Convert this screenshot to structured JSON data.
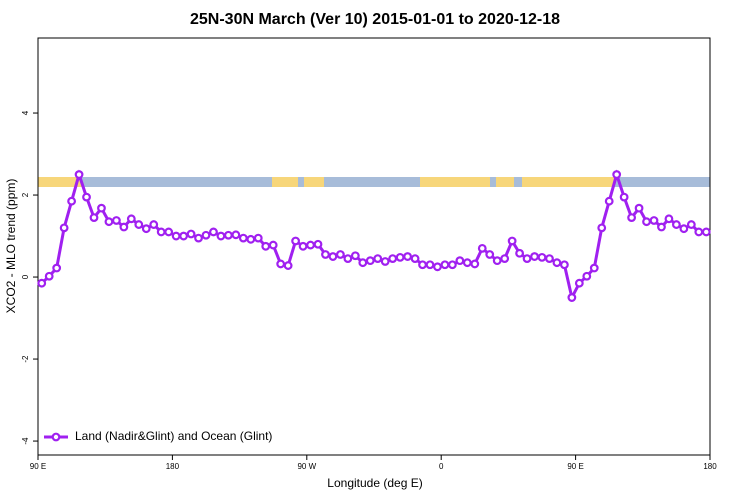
{
  "chart_data": {
    "type": "line",
    "title": "25N-30N March (Ver 10)   2015-01-01 to 2020-12-18",
    "x_label": "Longitude (deg E)",
    "y_label": "XCO2 - MLO trend (ppm)",
    "x": [
      92.5,
      97.5,
      102.5,
      107.5,
      112.5,
      117.5,
      122.5,
      127.5,
      132.5,
      137.5,
      142.5,
      147.5,
      152.5,
      157.5,
      162.5,
      167.5,
      172.5,
      177.5,
      182.5,
      187.5,
      192.5,
      197.5,
      202.5,
      207.5,
      212.5,
      217.5,
      222.5,
      227.5,
      232.5,
      237.5,
      242.5,
      247.5,
      252.5,
      257.5,
      262.5,
      267.5,
      272.5,
      277.5,
      282.5,
      287.5,
      292.5,
      297.5,
      302.5,
      307.5,
      312.5,
      317.5,
      322.5,
      327.5,
      332.5,
      337.5,
      342.5,
      347.5,
      352.5,
      357.5,
      362.5,
      367.5,
      372.5,
      377.5,
      382.5,
      387.5,
      392.5,
      397.5,
      402.5,
      407.5,
      412.5,
      417.5,
      422.5,
      427.5,
      432.5,
      437.5,
      442.5,
      447.5,
      452.5,
      457.5,
      462.5,
      467.5,
      472.5,
      477.5,
      482.5,
      487.5,
      492.5,
      497.5,
      502.5,
      507.5,
      512.5,
      517.5,
      522.5,
      527.5,
      532.5,
      537.5
    ],
    "series": [
      {
        "name": "Land (Nadir&Glint) and Ocean (Glint)",
        "color": "#a020f0",
        "values": [
          -0.15,
          0.02,
          0.22,
          1.2,
          1.85,
          2.5,
          1.95,
          1.45,
          1.68,
          1.35,
          1.38,
          1.22,
          1.42,
          1.28,
          1.18,
          1.28,
          1.1,
          1.1,
          1.0,
          1.0,
          1.05,
          0.95,
          1.02,
          1.1,
          1.0,
          1.02,
          1.03,
          0.95,
          0.92,
          0.95,
          0.75,
          0.78,
          0.32,
          0.28,
          0.88,
          0.75,
          0.78,
          0.8,
          0.55,
          0.5,
          0.55,
          0.45,
          0.52,
          0.35,
          0.4,
          0.45,
          0.38,
          0.45,
          0.48,
          0.5,
          0.45,
          0.3,
          0.3,
          0.25,
          0.3,
          0.3,
          0.4,
          0.35,
          0.32,
          0.7,
          0.55,
          0.4,
          0.45,
          0.88,
          0.58,
          0.45,
          0.5,
          0.48,
          0.45,
          0.35,
          0.3,
          -0.5,
          -0.15,
          0.02,
          0.22,
          1.2,
          1.85,
          2.5,
          1.95,
          1.45,
          1.68,
          1.35,
          1.38,
          1.22,
          1.42,
          1.28,
          1.18,
          1.28,
          1.1,
          1.1
        ]
      }
    ],
    "xlim": [
      90,
      540
    ],
    "xticks": [
      {
        "value": 90,
        "label": "90 E"
      },
      180,
      {
        "value": 270,
        "label": "90 W"
      },
      {
        "value": 360,
        "label": "0"
      },
      {
        "value": 450,
        "label": "90 E"
      },
      {
        "value": 540,
        "label": "180"
      }
    ],
    "ylim": [
      -4.34,
      5.83
    ],
    "yticks": [
      -4,
      -2,
      0,
      2,
      4
    ],
    "legend": "bottom-left"
  }
}
